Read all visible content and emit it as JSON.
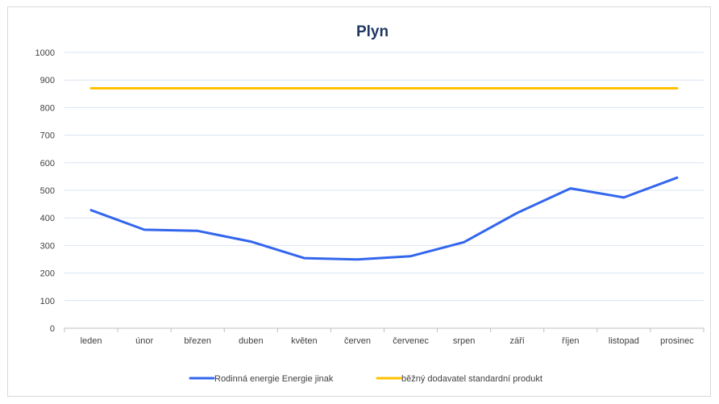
{
  "chart_data": {
    "type": "line",
    "title": "Plyn",
    "categories": [
      "leden",
      "únor",
      "březen",
      "duben",
      "květen",
      "červen",
      "červenec",
      "srpen",
      "září",
      "říjen",
      "listopad",
      "prosinec"
    ],
    "ylim": [
      0,
      1000
    ],
    "yticks": [
      0,
      100,
      200,
      300,
      400,
      500,
      600,
      700,
      800,
      900,
      1000
    ],
    "grid": true,
    "legend_position": "bottom",
    "series": [
      {
        "name": "Rodinná energie Energie jinak",
        "color": "#3366ee",
        "values": [
          428,
          357,
          353,
          314,
          254,
          249,
          261,
          312,
          418,
          507,
          474,
          546
        ]
      },
      {
        "name": "běžný dodavatel standardní produkt",
        "color": "#ffc000",
        "values": [
          870,
          870,
          870,
          870,
          870,
          870,
          870,
          870,
          870,
          870,
          870,
          870
        ]
      }
    ]
  }
}
